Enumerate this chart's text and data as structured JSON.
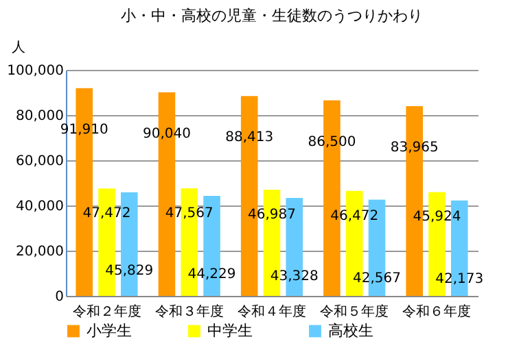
{
  "chart_data": {
    "type": "bar",
    "title": "小・中・高校の児童・生徒数のうつりかわり",
    "ylabel": "人",
    "categories": [
      "令和２年度",
      "令和３年度",
      "令和４年度",
      "令和５年度",
      "令和６年度"
    ],
    "series": [
      {
        "name": "小学生",
        "color": "#ff9900",
        "values": [
          91910,
          90040,
          88413,
          86500,
          83965
        ],
        "value_labels": [
          "91,910",
          "90,040",
          "88,413",
          "86,500",
          "83,965"
        ]
      },
      {
        "name": "中学生",
        "color": "#ffff00",
        "values": [
          47472,
          47567,
          46987,
          46472,
          45924
        ],
        "value_labels": [
          "47,472",
          "47,567",
          "46,987",
          "46,472",
          "45,924"
        ]
      },
      {
        "name": "高校生",
        "color": "#66ccff",
        "values": [
          45829,
          44229,
          43328,
          42567,
          42173
        ],
        "value_labels": [
          "45,829",
          "44,229",
          "43,328",
          "42,567",
          "42,173"
        ]
      }
    ],
    "ylim": [
      0,
      100000
    ],
    "yticks": [
      0,
      {
        "value": 20000,
        "label": "20,000"
      },
      {
        "value": 40000,
        "label": "40,000"
      },
      {
        "value": 60000,
        "label": "60,000"
      },
      {
        "value": 80000,
        "label": "80,000"
      },
      {
        "value": 100000,
        "label": "100,000"
      }
    ],
    "grid": "y",
    "legend": "bottom"
  }
}
